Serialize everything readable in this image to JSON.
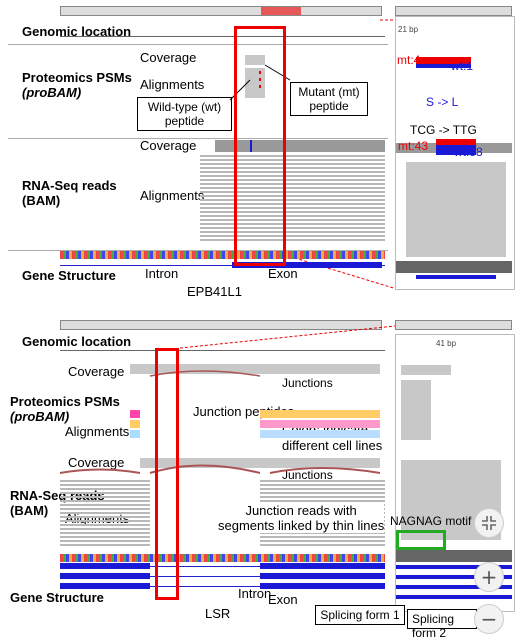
{
  "top": {
    "genomic_location": "Genomic location",
    "coverage_label_1": "Coverage",
    "alignments_label_1": "Alignments",
    "proteomics_title": "Proteomics PSMs",
    "proteomics_sub": "(proBAM)",
    "wt_callout": "Wild-type (wt)\npeptide",
    "mt_callout": "Mutant (mt)\npeptide",
    "coverage_label_2": "Coverage",
    "rnaseq_title": "RNA-Seq reads",
    "rnaseq_sub": "(BAM)",
    "alignments_label_2": "Alignments",
    "gene_structure": "Gene Structure",
    "intron": "Intron",
    "exon": "Exon",
    "gene_name": "EPB41L1",
    "mt_count_1": "mt:4",
    "wt_count_1": "wt:1",
    "aa_change": "S -> L",
    "codon_change": "TCG -> TTG",
    "mt_count_2": "mt:43",
    "wt_count_2": "wt:58"
  },
  "bottom": {
    "genomic_location": "Genomic location",
    "coverage_label_1": "Coverage",
    "junctions_label_1": "Junctions",
    "proteomics_title": "Proteomics PSMs",
    "proteomics_sub": "(proBAM)",
    "junction_peptides": "Junction peptides",
    "alignments_label_1": "Alignments",
    "colors_note": "Colors indicate\ndifferent cell lines",
    "coverage_label_2": "Coverage",
    "junctions_label_2": "Junctions",
    "rnaseq_title": "RNA-Seq reads",
    "rnaseq_sub": "(BAM)",
    "alignments_label_2": "Alignments",
    "junction_reads_note": "Junction reads with\nsegments linked by thin lines",
    "nagnag": "NAGNAG motif",
    "gene_structure": "Gene Structure",
    "intron": "Intron",
    "exon": "Exon",
    "gene_name": "LSR",
    "splicing_form_1": "Splicing form 1",
    "splicing_form_2": "Splicing form 2",
    "zoom_bp": "41 bp"
  },
  "controls": {
    "fullscreen_icon": "fullscreen-exit-icon",
    "zoom_in": "+",
    "zoom_out": "−"
  }
}
